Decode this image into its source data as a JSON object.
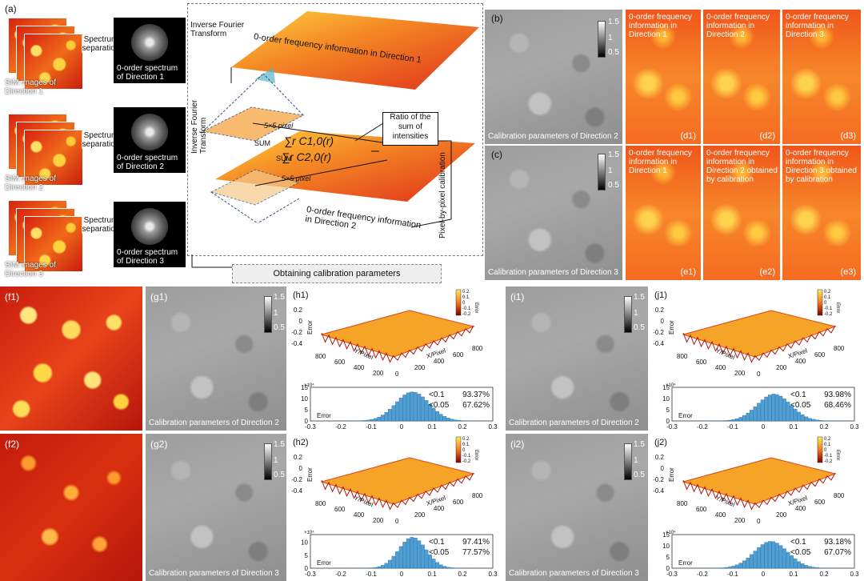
{
  "panel_labels": {
    "a": "(a)",
    "b": "(b)",
    "c": "(c)",
    "d1": "(d1)",
    "d2": "(d2)",
    "d3": "(d3)",
    "e1": "(e1)",
    "e2": "(e2)",
    "e3": "(e3)",
    "f1": "(f1)",
    "f2": "(f2)",
    "g1": "(g1)",
    "g2": "(g2)",
    "h1": "(h1)",
    "h2": "(h2)",
    "i1": "(i1)",
    "i2": "(i2)",
    "j1": "(j1)",
    "j2": "(j2)"
  },
  "panel_a": {
    "sim_dir1": "SIM images of Direction 1",
    "sim_dir2": "SIM images of Direction 2",
    "sim_dir3": "SIM images of Direction 3",
    "spectrum_sep": "Spectrum separation",
    "spec1": "0-order spectrum of Direction 1",
    "spec2": "0-order spectrum of Direction 2",
    "spec3": "0-order spectrum of Direction 3",
    "ift1": "Inverse Fourier Transform",
    "ift2": "Inverse Fourier Transform",
    "plane1": "0-order frequency information in Direction 1",
    "plane2": "0-order frequency information in Direction 2",
    "pixel_size": "5×5 pixel",
    "sum": "SUM",
    "eq1": "∑r C1,0(r)",
    "eq2": "∑r C2,0(r)",
    "ratio": "Ratio of the sum of intensities",
    "pixel_cal": "Pixel-by-pixel calibration",
    "obtain": "Obtaining calibration parameters"
  },
  "colorbar": {
    "max": "1.5",
    "mid": "1",
    "min": "0.5"
  },
  "panel_b_caption": "Calibration parameters of Direction 2",
  "panel_c_caption": "Calibration parameters of Direction 3",
  "d_titles": [
    "0-order frequency information in Direction 1",
    "0-order frequency information in Direction 2",
    "0-order frequency information in Direction 3"
  ],
  "e_titles": [
    "0-order frequency information in Direction 1",
    "0-order frequency information in Direction 2 obtained by calibration",
    "0-order frequency information in Direction 3 obtained by calibration"
  ],
  "g1_caption": "Calibration parameters of Direction 2",
  "g2_caption": "Calibration parameters of Direction 3",
  "i1_caption": "Calibration parameters of Direction 2",
  "i2_caption": "Calibration parameters of Direction 3",
  "surface": {
    "zlabel": "Error",
    "ylabel": "Y/Pixel",
    "xlabel": "X/Pixel",
    "zticks": [
      "0.2",
      "0",
      "-0.2",
      "-0.4"
    ],
    "yticks": [
      "800",
      "600",
      "400",
      "200"
    ],
    "xticks": [
      "0",
      "200",
      "400",
      "600",
      "800"
    ],
    "legend_title": "Error",
    "legend_ticks": [
      "0.2",
      "0.1",
      "0",
      "-0.1",
      "-0.2"
    ]
  },
  "chart_data": [
    {
      "id": "h1",
      "type": "bar",
      "xlabel": "Error",
      "exp": "×10⁴",
      "yticks": [
        "15",
        "10",
        "5",
        "0"
      ],
      "xticks": [
        "-0.3",
        "-0.2",
        "-0.1",
        "0",
        "0.1",
        "0.2",
        "0.3"
      ],
      "xlim": [
        -0.3,
        0.3
      ],
      "ylim": [
        0,
        15
      ],
      "stats": [
        {
          "k": "<0.1",
          "v": "93.37%"
        },
        {
          "k": "<0.05",
          "v": "67.62%"
        }
      ],
      "mean": 0.03,
      "sd": 0.055,
      "peak": 13
    },
    {
      "id": "h2",
      "type": "bar",
      "xlabel": "Error",
      "exp": "×10⁴",
      "yticks": [
        "10",
        "5",
        "0"
      ],
      "xticks": [
        "-0.3",
        "-0.2",
        "-0.1",
        "0",
        "0.1",
        "0.2",
        "0.3"
      ],
      "xlim": [
        -0.3,
        0.3
      ],
      "ylim": [
        0,
        13
      ],
      "stats": [
        {
          "k": "<0.1",
          "v": "97.41%"
        },
        {
          "k": "<0.05",
          "v": "77.57%"
        }
      ],
      "mean": 0.03,
      "sd": 0.045,
      "peak": 12
    },
    {
      "id": "j1",
      "type": "bar",
      "xlabel": "Error",
      "exp": "×10⁴",
      "yticks": [
        "15",
        "10",
        "5",
        "0"
      ],
      "xticks": [
        "-0.3",
        "-0.2",
        "-0.1",
        "0",
        "0.1",
        "0.2",
        "0.3"
      ],
      "xlim": [
        -0.3,
        0.3
      ],
      "ylim": [
        0,
        15
      ],
      "stats": [
        {
          "k": "<0.1",
          "v": "93.98%"
        },
        {
          "k": "<0.05",
          "v": "68.46%"
        }
      ],
      "mean": 0.03,
      "sd": 0.055,
      "peak": 12
    },
    {
      "id": "j2",
      "type": "bar",
      "xlabel": "Error",
      "exp": "×10⁴",
      "yticks": [
        "15",
        "10",
        "5",
        "0"
      ],
      "xticks": [
        "-0.3",
        "-0.2",
        "-0.1",
        "0",
        "0.1",
        "0.2",
        "0.3"
      ],
      "xlim": [
        -0.3,
        0.3
      ],
      "ylim": [
        0,
        15
      ],
      "stats": [
        {
          "k": "<0.1",
          "v": "93.18%"
        },
        {
          "k": "<0.05",
          "v": "67.07%"
        }
      ],
      "mean": 0.02,
      "sd": 0.055,
      "peak": 12
    }
  ]
}
